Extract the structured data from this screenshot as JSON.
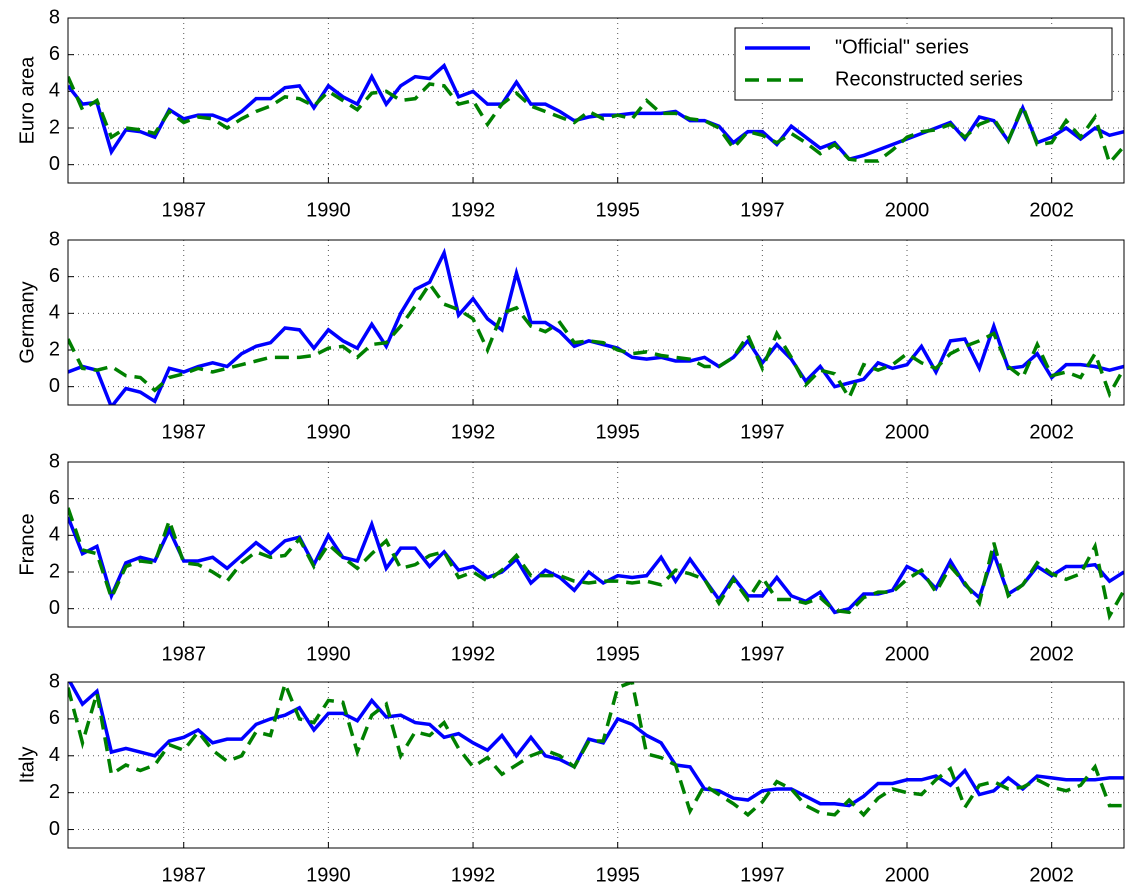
{
  "chart_data": [
    {
      "type": "line",
      "ylabel": "Euro area",
      "legend": "northeast",
      "grid": true,
      "x": [
        1985.5,
        1985.75,
        1986,
        1986.25,
        1986.5,
        1986.75,
        1987,
        1987.25,
        1987.5,
        1987.75,
        1988,
        1988.25,
        1988.5,
        1988.75,
        1989,
        1989.25,
        1989.5,
        1989.75,
        1990,
        1990.25,
        1990.5,
        1990.75,
        1991,
        1991.25,
        1991.5,
        1991.75,
        1992,
        1992.25,
        1992.5,
        1992.75,
        1993,
        1993.25,
        1993.5,
        1993.75,
        1994,
        1994.25,
        1994.5,
        1994.75,
        1995,
        1995.25,
        1995.5,
        1995.75,
        1996,
        1996.25,
        1996.5,
        1996.75,
        1997,
        1997.25,
        1997.5,
        1997.75,
        1998,
        1998.25,
        1998.5,
        1998.75,
        1999,
        1999.25,
        1999.5,
        1999.75,
        2000,
        2000.25,
        2000.5,
        2000.75,
        2001,
        2001.25,
        2001.5,
        2001.75,
        2002,
        2002.25,
        2002.5,
        2002.75,
        2003,
        2003.25,
        2003.5,
        2003.75
      ],
      "xlim": [
        1985.5,
        2003.75
      ],
      "xticks": [
        {
          "value": 1987.5,
          "label": "1987"
        },
        1990,
        {
          "value": 1992.5,
          "label": "1992"
        },
        1995,
        {
          "value": 1997.5,
          "label": "1997"
        },
        2000,
        {
          "value": 2002.5,
          "label": "2002"
        }
      ],
      "ylim": [
        -1,
        8
      ],
      "yticks": [
        0,
        2,
        4,
        6,
        8
      ],
      "series": [
        {
          "name": "\"Official\" series",
          "color": "#0000ff",
          "line_style": "solid",
          "values": [
            4.3,
            3.3,
            3.4,
            0.7,
            1.9,
            1.8,
            1.5,
            3.0,
            2.5,
            2.7,
            2.7,
            2.4,
            2.9,
            3.6,
            3.6,
            4.2,
            4.3,
            3.1,
            4.3,
            3.7,
            3.3,
            4.8,
            3.3,
            4.3,
            4.8,
            4.7,
            5.4,
            3.7,
            4.0,
            3.3,
            3.3,
            4.5,
            3.3,
            3.3,
            2.9,
            2.4,
            2.6,
            2.7,
            2.7,
            2.8,
            2.8,
            2.8,
            2.9,
            2.4,
            2.4,
            2.1,
            1.2,
            1.8,
            1.8,
            1.1,
            2.1,
            1.5,
            0.9,
            1.2,
            0.3,
            0.5,
            0.8,
            1.1,
            1.4,
            1.7,
            2.0,
            2.3,
            1.4,
            2.6,
            2.4,
            1.3,
            3.1,
            1.2,
            1.5,
            2.0,
            1.4,
            2.0,
            1.6,
            1.8
          ]
        },
        {
          "name": "Reconstructed series",
          "color": "#008000",
          "line_style": "dashed",
          "values": [
            4.8,
            3.0,
            3.5,
            1.5,
            2.0,
            1.9,
            1.7,
            2.9,
            2.3,
            2.6,
            2.5,
            2.0,
            2.5,
            2.9,
            3.2,
            3.7,
            3.6,
            3.2,
            4.0,
            3.5,
            3.0,
            3.9,
            4.0,
            3.5,
            3.6,
            4.4,
            4.3,
            3.3,
            3.5,
            2.2,
            3.3,
            3.9,
            3.2,
            2.9,
            2.6,
            2.3,
            2.9,
            2.5,
            2.7,
            2.5,
            3.5,
            2.8,
            2.8,
            2.5,
            2.4,
            2.0,
            0.9,
            1.8,
            1.6,
            1.2,
            1.7,
            1.2,
            0.6,
            1.1,
            0.3,
            0.2,
            0.2,
            0.8,
            1.5,
            1.8,
            1.9,
            2.2,
            1.5,
            2.2,
            2.5,
            1.3,
            3.2,
            1.1,
            1.2,
            2.4,
            1.5,
            2.6,
            0.1,
            1.0
          ]
        }
      ]
    },
    {
      "type": "line",
      "ylabel": "Germany",
      "grid": true,
      "x": [
        1985.5,
        1985.75,
        1986,
        1986.25,
        1986.5,
        1986.75,
        1987,
        1987.25,
        1987.5,
        1987.75,
        1988,
        1988.25,
        1988.5,
        1988.75,
        1989,
        1989.25,
        1989.5,
        1989.75,
        1990,
        1990.25,
        1990.5,
        1990.75,
        1991,
        1991.25,
        1991.5,
        1991.75,
        1992,
        1992.25,
        1992.5,
        1992.75,
        1993,
        1993.25,
        1993.5,
        1993.75,
        1994,
        1994.25,
        1994.5,
        1994.75,
        1995,
        1995.25,
        1995.5,
        1995.75,
        1996,
        1996.25,
        1996.5,
        1996.75,
        1997,
        1997.25,
        1997.5,
        1997.75,
        1998,
        1998.25,
        1998.5,
        1998.75,
        1999,
        1999.25,
        1999.5,
        1999.75,
        2000,
        2000.25,
        2000.5,
        2000.75,
        2001,
        2001.25,
        2001.5,
        2001.75,
        2002,
        2002.25,
        2002.5,
        2002.75,
        2003,
        2003.25,
        2003.5,
        2003.75
      ],
      "xlim": [
        1985.5,
        2003.75
      ],
      "xticks": [
        {
          "value": 1987.5,
          "label": "1987"
        },
        1990,
        {
          "value": 1992.5,
          "label": "1992"
        },
        1995,
        {
          "value": 1997.5,
          "label": "1997"
        },
        2000,
        {
          "value": 2002.5,
          "label": "2002"
        }
      ],
      "ylim": [
        -1,
        8
      ],
      "yticks": [
        0,
        2,
        4,
        6,
        8
      ],
      "series": [
        {
          "color": "#0000ff",
          "line_style": "solid",
          "values": [
            0.8,
            1.1,
            0.9,
            -1.1,
            -0.1,
            -0.3,
            -0.8,
            1.0,
            0.8,
            1.1,
            1.3,
            1.1,
            1.8,
            2.2,
            2.4,
            3.2,
            3.1,
            2.1,
            3.1,
            2.5,
            2.1,
            3.4,
            2.2,
            4.0,
            5.3,
            5.7,
            7.3,
            3.9,
            4.8,
            3.7,
            3.1,
            6.2,
            3.5,
            3.5,
            3.0,
            2.2,
            2.5,
            2.3,
            2.1,
            1.6,
            1.5,
            1.6,
            1.4,
            1.4,
            1.6,
            1.1,
            1.6,
            2.5,
            1.3,
            2.3,
            1.5,
            0.3,
            1.1,
            0.0,
            0.2,
            0.4,
            1.3,
            1.0,
            1.2,
            2.2,
            0.8,
            2.5,
            2.6,
            1.0,
            3.3,
            1.0,
            1.1,
            1.8,
            0.5,
            1.2,
            1.2,
            1.1,
            0.9,
            1.1
          ]
        },
        {
          "color": "#008000",
          "line_style": "dashed",
          "values": [
            2.6,
            1.0,
            0.9,
            1.1,
            0.6,
            0.5,
            -0.2,
            0.5,
            0.7,
            1.0,
            0.8,
            1.0,
            1.2,
            1.4,
            1.6,
            1.6,
            1.6,
            1.7,
            2.1,
            2.2,
            1.6,
            2.3,
            2.4,
            3.3,
            4.4,
            5.6,
            4.5,
            4.2,
            3.7,
            2.0,
            4.0,
            4.3,
            3.3,
            3.0,
            3.5,
            2.4,
            2.5,
            2.4,
            2.0,
            1.8,
            1.9,
            1.7,
            1.6,
            1.5,
            1.1,
            1.1,
            1.6,
            2.8,
            1.0,
            2.9,
            1.6,
            0.1,
            0.9,
            0.7,
            -0.6,
            1.2,
            0.9,
            1.2,
            1.8,
            1.3,
            1.0,
            1.8,
            2.2,
            2.5,
            2.9,
            1.1,
            0.5,
            2.3,
            0.6,
            0.8,
            0.5,
            1.8,
            -0.4,
            1.0
          ]
        }
      ]
    },
    {
      "type": "line",
      "ylabel": "France",
      "grid": true,
      "x": [
        1985.5,
        1985.75,
        1986,
        1986.25,
        1986.5,
        1986.75,
        1987,
        1987.25,
        1987.5,
        1987.75,
        1988,
        1988.25,
        1988.5,
        1988.75,
        1989,
        1989.25,
        1989.5,
        1989.75,
        1990,
        1990.25,
        1990.5,
        1990.75,
        1991,
        1991.25,
        1991.5,
        1991.75,
        1992,
        1992.25,
        1992.5,
        1992.75,
        1993,
        1993.25,
        1993.5,
        1993.75,
        1994,
        1994.25,
        1994.5,
        1994.75,
        1995,
        1995.25,
        1995.5,
        1995.75,
        1996,
        1996.25,
        1996.5,
        1996.75,
        1997,
        1997.25,
        1997.5,
        1997.75,
        1998,
        1998.25,
        1998.5,
        1998.75,
        1999,
        1999.25,
        1999.5,
        1999.75,
        2000,
        2000.25,
        2000.5,
        2000.75,
        2001,
        2001.25,
        2001.5,
        2001.75,
        2002,
        2002.25,
        2002.5,
        2002.75,
        2003,
        2003.25,
        2003.5,
        2003.75
      ],
      "xlim": [
        1985.5,
        2003.75
      ],
      "xticks": [
        {
          "value": 1987.5,
          "label": "1987"
        },
        1990,
        {
          "value": 1992.5,
          "label": "1992"
        },
        1995,
        {
          "value": 1997.5,
          "label": "1997"
        },
        2000,
        {
          "value": 2002.5,
          "label": "2002"
        }
      ],
      "ylim": [
        -1,
        8
      ],
      "yticks": [
        0,
        2,
        4,
        6,
        8
      ],
      "series": [
        {
          "color": "#0000ff",
          "line_style": "solid",
          "values": [
            5.0,
            3.0,
            3.4,
            0.7,
            2.5,
            2.8,
            2.6,
            4.3,
            2.6,
            2.6,
            2.8,
            2.2,
            2.9,
            3.6,
            3.0,
            3.7,
            3.9,
            2.4,
            4.0,
            2.8,
            2.6,
            4.6,
            2.2,
            3.3,
            3.3,
            2.3,
            3.1,
            2.1,
            2.3,
            1.7,
            2.0,
            2.7,
            1.4,
            2.1,
            1.7,
            1.0,
            2.0,
            1.4,
            1.8,
            1.7,
            1.8,
            2.8,
            1.5,
            2.7,
            1.6,
            0.5,
            1.7,
            0.7,
            0.7,
            1.7,
            0.7,
            0.4,
            0.9,
            -0.2,
            0.0,
            0.8,
            0.8,
            1.0,
            2.3,
            1.9,
            1.1,
            2.6,
            1.3,
            0.6,
            3.0,
            0.8,
            1.3,
            2.3,
            1.8,
            2.3,
            2.3,
            2.4,
            1.5,
            2.0
          ]
        },
        {
          "color": "#008000",
          "line_style": "dashed",
          "values": [
            5.5,
            3.2,
            3.0,
            0.6,
            2.3,
            2.6,
            2.5,
            4.8,
            2.5,
            2.4,
            2.0,
            1.5,
            2.5,
            3.1,
            2.8,
            2.9,
            3.8,
            2.3,
            3.5,
            2.8,
            2.2,
            3.0,
            3.7,
            2.2,
            2.4,
            2.9,
            3.1,
            1.7,
            2.0,
            1.5,
            2.1,
            2.9,
            1.8,
            1.8,
            1.8,
            1.5,
            1.4,
            1.5,
            1.5,
            1.4,
            1.5,
            1.3,
            2.1,
            1.9,
            1.6,
            0.3,
            1.6,
            0.5,
            1.7,
            0.5,
            0.5,
            0.3,
            0.6,
            -0.1,
            -0.2,
            0.6,
            0.9,
            0.9,
            1.6,
            2.1,
            0.9,
            2.3,
            1.4,
            0.3,
            3.6,
            0.7,
            1.3,
            2.5,
            1.9,
            1.6,
            1.9,
            3.4,
            -0.4,
            1.0
          ]
        }
      ]
    },
    {
      "type": "line",
      "ylabel": "Italy",
      "grid": true,
      "x": [
        1985.5,
        1985.75,
        1986,
        1986.25,
        1986.5,
        1986.75,
        1987,
        1987.25,
        1987.5,
        1987.75,
        1988,
        1988.25,
        1988.5,
        1988.75,
        1989,
        1989.25,
        1989.5,
        1989.75,
        1990,
        1990.25,
        1990.5,
        1990.75,
        1991,
        1991.25,
        1991.5,
        1991.75,
        1992,
        1992.25,
        1992.5,
        1992.75,
        1993,
        1993.25,
        1993.5,
        1993.75,
        1994,
        1994.25,
        1994.5,
        1994.75,
        1995,
        1995.25,
        1995.5,
        1995.75,
        1996,
        1996.25,
        1996.5,
        1996.75,
        1997,
        1997.25,
        1997.5,
        1997.75,
        1998,
        1998.25,
        1998.5,
        1998.75,
        1999,
        1999.25,
        1999.5,
        1999.75,
        2000,
        2000.25,
        2000.5,
        2000.75,
        2001,
        2001.25,
        2001.5,
        2001.75,
        2002,
        2002.25,
        2002.5,
        2002.75,
        2003,
        2003.25,
        2003.5,
        2003.75
      ],
      "xlim": [
        1985.5,
        2003.75
      ],
      "xticks": [
        {
          "value": 1987.5,
          "label": "1987"
        },
        1990,
        {
          "value": 1992.5,
          "label": "1992"
        },
        1995,
        {
          "value": 1997.5,
          "label": "1997"
        },
        2000,
        {
          "value": 2002.5,
          "label": "2002"
        }
      ],
      "ylim": [
        -1,
        8
      ],
      "yticks": [
        0,
        2,
        4,
        6,
        8
      ],
      "series": [
        {
          "color": "#0000ff",
          "line_style": "solid",
          "values": [
            8.2,
            6.8,
            7.5,
            4.2,
            4.4,
            4.2,
            4.0,
            4.8,
            5.0,
            5.4,
            4.7,
            4.9,
            4.9,
            5.7,
            6.0,
            6.2,
            6.6,
            5.4,
            6.3,
            6.3,
            5.9,
            7.0,
            6.1,
            6.2,
            5.8,
            5.7,
            5.0,
            5.2,
            4.7,
            4.3,
            5.1,
            4.0,
            5.0,
            4.0,
            3.8,
            3.4,
            4.9,
            4.7,
            6.0,
            5.7,
            5.1,
            4.7,
            3.5,
            3.4,
            2.2,
            2.1,
            1.7,
            1.6,
            2.1,
            2.2,
            2.2,
            1.8,
            1.4,
            1.4,
            1.3,
            1.8,
            2.5,
            2.5,
            2.7,
            2.7,
            2.9,
            2.4,
            3.2,
            1.9,
            2.1,
            2.8,
            2.2,
            2.9,
            2.8,
            2.7,
            2.7,
            2.7,
            2.8,
            2.8
          ]
        },
        {
          "color": "#008000",
          "line_style": "dashed",
          "values": [
            7.7,
            4.7,
            7.4,
            3.0,
            3.5,
            3.2,
            3.5,
            4.6,
            4.3,
            5.3,
            4.3,
            3.7,
            4.0,
            5.3,
            5.1,
            7.9,
            6.0,
            5.8,
            7.0,
            6.9,
            4.2,
            6.2,
            6.8,
            4.0,
            5.3,
            5.1,
            5.8,
            4.4,
            3.4,
            3.9,
            3.0,
            3.5,
            4.0,
            4.3,
            4.0,
            3.4,
            4.8,
            4.8,
            7.7,
            8.0,
            4.1,
            3.9,
            3.5,
            1.0,
            2.4,
            1.9,
            1.4,
            0.8,
            1.5,
            2.6,
            2.2,
            1.3,
            0.9,
            0.8,
            1.6,
            0.8,
            1.7,
            2.2,
            2.0,
            1.9,
            2.7,
            3.3,
            1.2,
            2.4,
            2.6,
            2.2,
            2.3,
            2.7,
            2.3,
            2.1,
            2.4,
            3.4,
            1.3,
            1.3
          ]
        }
      ]
    }
  ]
}
